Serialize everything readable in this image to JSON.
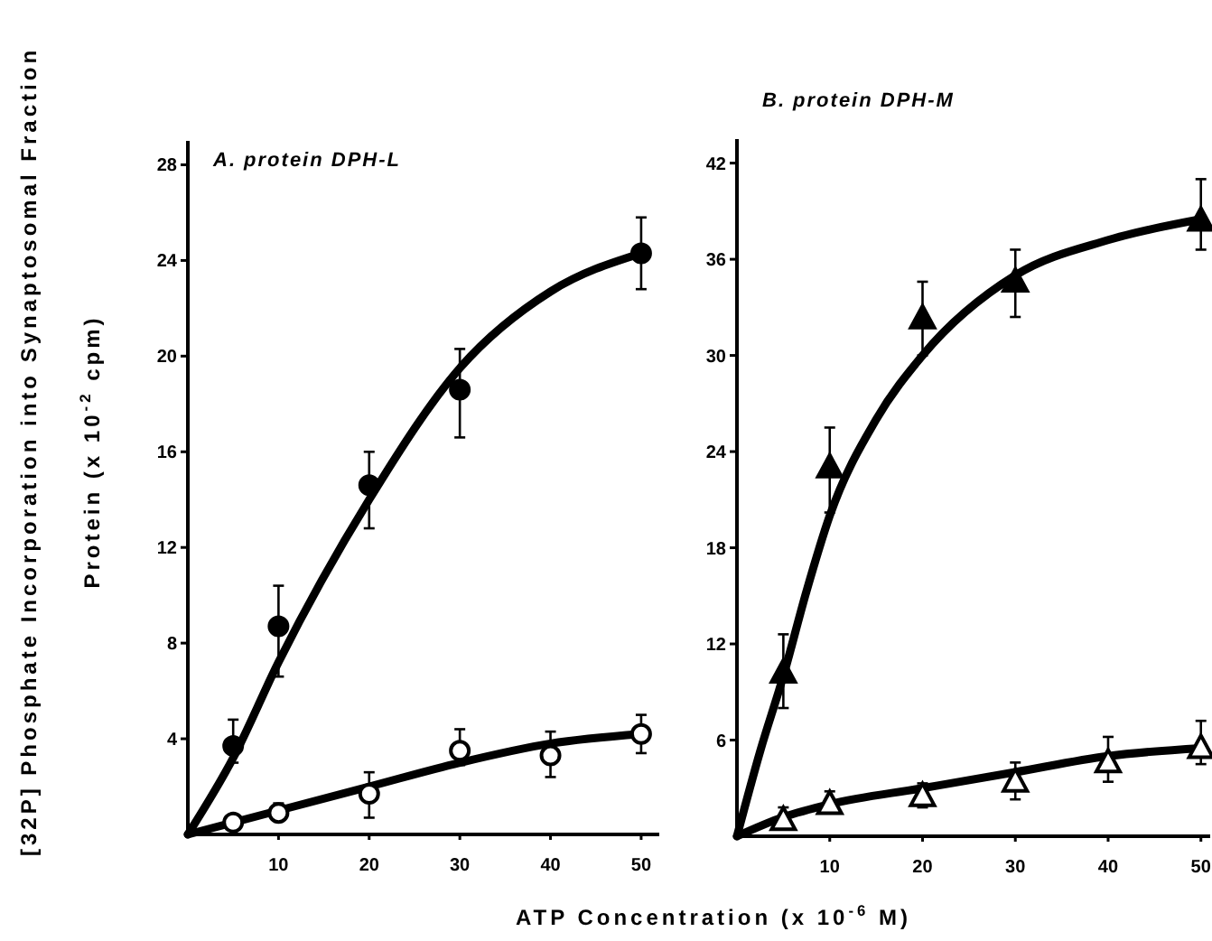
{
  "chart_data": [
    {
      "type": "scatter",
      "title": "A. protein DPH-L",
      "ylabel": "[32P] Phosphate Incorporation into Synaptosomal Fraction\nProtein (x 10$^{-2}$ cpm)",
      "xlabel": "ATP Concentration (x 10$^{-6}$ M)",
      "xlim": [
        0,
        52
      ],
      "xticks": [
        10,
        20,
        30,
        40,
        50
      ],
      "ylim": [
        0,
        29
      ],
      "yticks": [
        4,
        8,
        12,
        16,
        20,
        24,
        28
      ],
      "grid": false,
      "series": [
        {
          "type": "line",
          "color": "#000000",
          "x": [
            0,
            5,
            10,
            20,
            30,
            40,
            50
          ],
          "values": [
            0,
            3.2,
            7.2,
            14,
            19.5,
            22.7,
            24.3
          ]
        },
        {
          "type": "line",
          "color": "#000000",
          "x": [
            0,
            10,
            20,
            30,
            40,
            50
          ],
          "values": [
            0,
            1,
            2,
            3,
            3.8,
            4.2
          ]
        },
        {
          "color": "#000000",
          "marker": "circle",
          "x": [
            5,
            10,
            20,
            30,
            50
          ],
          "values": [
            3.7,
            8.7,
            14.6,
            18.6,
            24.3
          ],
          "errors": [
            [
              3.0,
              4.8
            ],
            [
              6.6,
              10.4
            ],
            [
              12.8,
              16.0
            ],
            [
              16.6,
              20.3
            ],
            [
              22.8,
              25.8
            ]
          ]
        },
        {
          "color": "#ffffff",
          "marker": "circle",
          "x": [
            5,
            10,
            20,
            30,
            40,
            50
          ],
          "values": [
            0.5,
            0.9,
            1.7,
            3.5,
            3.3,
            4.2
          ],
          "errors": [
            null,
            [
              0.6,
              1.3
            ],
            [
              0.7,
              2.6
            ],
            [
              2.9,
              4.4
            ],
            [
              2.4,
              4.3
            ],
            [
              3.4,
              5.0
            ]
          ]
        }
      ]
    },
    {
      "type": "scatter",
      "title": "B. protein DPH-M",
      "xlim": [
        0,
        51
      ],
      "xticks": [
        10,
        20,
        30,
        40,
        50
      ],
      "ylim": [
        0,
        43.5
      ],
      "yticks": [
        6,
        12,
        18,
        24,
        30,
        36,
        42
      ],
      "grid": false,
      "series": [
        {
          "type": "line",
          "color": "#000000",
          "x": [
            0,
            2.5,
            5,
            7.5,
            10,
            15,
            20,
            30,
            40,
            50
          ],
          "values": [
            0,
            5.3,
            10,
            15.3,
            20,
            26,
            30,
            35,
            37.2,
            38.5
          ]
        },
        {
          "type": "line",
          "color": "#000000",
          "x": [
            0,
            5,
            10,
            20,
            30,
            40,
            50
          ],
          "values": [
            0,
            1.2,
            2,
            3,
            4,
            5,
            5.5
          ]
        },
        {
          "color": "#000000",
          "marker": "triangle",
          "x": [
            5,
            10,
            20,
            30,
            50
          ],
          "values": [
            10.2,
            23,
            32.3,
            34.6,
            38.4
          ],
          "errors": [
            [
              8,
              12.6
            ],
            [
              20.2,
              25.5
            ],
            [
              30,
              34.6
            ],
            [
              32.4,
              36.6
            ],
            [
              36.6,
              41
            ]
          ]
        },
        {
          "color": "#ffffff",
          "marker": "triangle",
          "x": [
            5,
            10,
            20,
            30,
            40,
            50
          ],
          "values": [
            1,
            2,
            2.5,
            3.4,
            4.6,
            5.5
          ],
          "errors": [
            [
              0.6,
              1.8
            ],
            [
              1.5,
              2.8
            ],
            [
              1.8,
              3.3
            ],
            [
              2.3,
              4.6
            ],
            [
              3.4,
              6.2
            ],
            [
              4.5,
              7.2
            ]
          ]
        }
      ]
    }
  ]
}
